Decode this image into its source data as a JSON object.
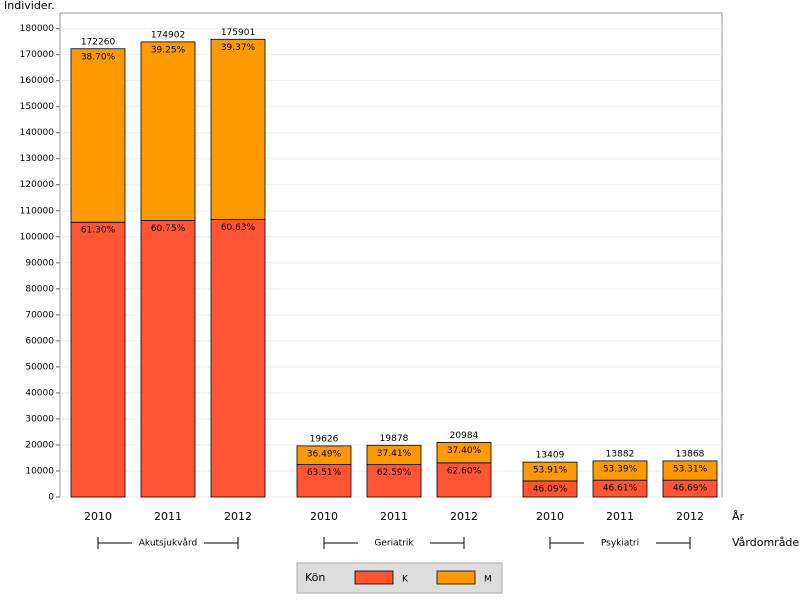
{
  "chart_data": {
    "type": "stacked-bar",
    "y_label": "Individer.",
    "x_label": "År",
    "group_axis_label": "Vårdområde",
    "legend_title": "Kön",
    "group_labels": [
      "Akutsjukvård",
      "Geriatrik",
      "Psykiatri"
    ],
    "categories": [
      "2010",
      "2011",
      "2012",
      "2010",
      "2011",
      "2012",
      "2010",
      "2011",
      "2012"
    ],
    "series": [
      {
        "name": "K",
        "color": "#ff5533",
        "values": [
          105595,
          106253,
          106649,
          12464,
          12442,
          13136,
          6180,
          6470,
          6475
        ],
        "labels": [
          "61.30%",
          "60.75%",
          "60.63%",
          "63.51%",
          "62.59%",
          "62.60%",
          "46.09%",
          "46.61%",
          "46.69%"
        ]
      },
      {
        "name": "M",
        "color": "#ff9900",
        "values": [
          66665,
          68649,
          69252,
          7162,
          7436,
          7848,
          7229,
          7412,
          7393
        ],
        "labels": [
          "38.70%",
          "39.25%",
          "39.37%",
          "36.49%",
          "37.41%",
          "37.40%",
          "53.91%",
          "53.39%",
          "53.31%"
        ]
      }
    ],
    "totals": [
      172260,
      174902,
      175901,
      19626,
      19878,
      20984,
      13409,
      13882,
      13868
    ],
    "ylim": [
      0,
      186000
    ],
    "yticks": [
      0,
      10000,
      20000,
      30000,
      40000,
      50000,
      60000,
      70000,
      80000,
      90000,
      100000,
      110000,
      120000,
      130000,
      140000,
      150000,
      160000,
      170000,
      180000
    ],
    "grid": true
  }
}
